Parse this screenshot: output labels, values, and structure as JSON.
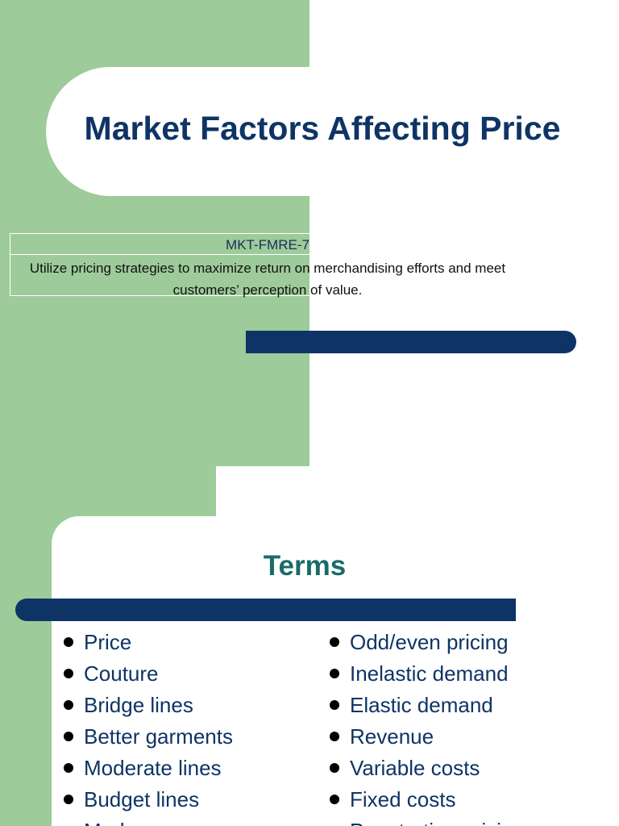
{
  "slide1": {
    "title": "Market Factors Affecting Price",
    "standard": {
      "code": "MKT-FMRE-7",
      "description": "Utilize pricing strategies to maximize return on merchandising efforts and meet customers’ perception of value."
    }
  },
  "slide2": {
    "title": "Terms",
    "terms_left": [
      "Price",
      "Couture",
      "Bridge lines",
      "Better garments",
      "Moderate lines",
      "Budget lines",
      "Markup"
    ],
    "terms_right": [
      "Odd/even pricing",
      "Inelastic demand",
      "Elastic demand",
      "Revenue",
      "Variable costs",
      "Fixed costs",
      "Penetration pricing"
    ]
  },
  "colors": {
    "green_panel": "#9dcb9a",
    "navy": "#0e3466",
    "teal_heading": "#1a6b66"
  }
}
